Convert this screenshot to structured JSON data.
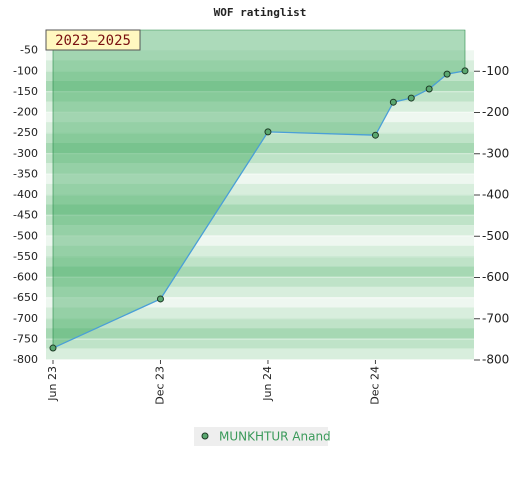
{
  "chart_data": {
    "type": "line",
    "title": "WOF ratinglist",
    "annotation": "2023–2025",
    "x": [
      "Jun 23",
      "Dec 23",
      "Jun 24",
      "Dec 24",
      "Jan 25",
      "Feb 25",
      "Mar 25",
      "Apr 25",
      "May 25"
    ],
    "xlim": [
      "Jun 23",
      "May 25"
    ],
    "xticks": [
      "Jun 23",
      "Dec 23",
      "Jun 24",
      "Dec 24"
    ],
    "series": [
      {
        "name": "MUNKHTUR Anand",
        "color": "#4a9fd8",
        "values": [
          -771,
          -652,
          -247,
          -255,
          -175,
          -165,
          -143,
          -107,
          -99
        ]
      }
    ],
    "ylim": [
      -800,
      0
    ],
    "yticks": [
      -50,
      -100,
      -150,
      -200,
      -250,
      -300,
      -350,
      -400,
      -450,
      -500,
      -550,
      -600,
      -650,
      -700,
      -750,
      -800
    ],
    "y2lim": [
      -800,
      0
    ],
    "y2ticks": [
      -100,
      -200,
      -300,
      -400,
      -500,
      -600,
      -700,
      -800
    ],
    "grid": true
  }
}
